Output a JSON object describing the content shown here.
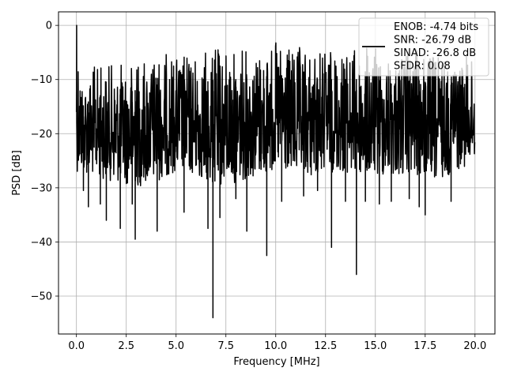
{
  "chart_data": {
    "type": "line",
    "title": "",
    "xlabel": "Frequency [MHz]",
    "ylabel": "PSD [dB]",
    "xlim": [
      -0.9,
      21.0
    ],
    "ylim": [
      -57.0,
      2.5
    ],
    "x_ticks": [
      0.0,
      2.5,
      5.0,
      7.5,
      10.0,
      12.5,
      15.0,
      17.5,
      20.0
    ],
    "x_tick_labels": [
      "0.0",
      "2.5",
      "5.0",
      "7.5",
      "10.0",
      "12.5",
      "15.0",
      "17.5",
      "20.0"
    ],
    "y_ticks": [
      0,
      -10,
      -20,
      -30,
      -40,
      -50
    ],
    "y_tick_labels": [
      "0",
      "−10",
      "−20",
      "−30",
      "−40",
      "−50"
    ],
    "grid": true,
    "legend": {
      "placement": "top-right",
      "lines": [
        "ENOB: -4.74 bits",
        "SNR: -26.79 dB",
        "SINAD: -26.8 dB",
        "SFDR: 0.08"
      ]
    },
    "series": [
      {
        "color": "#000000",
        "x_start": 0.0,
        "x_end": 20.0,
        "description": "dense noisy PSD trace; envelope and notable excursions",
        "upper_envelope_x": [
          0.0,
          0.05,
          0.15,
          0.3,
          1.0,
          2.0,
          3.0,
          4.0,
          5.0,
          6.0,
          7.0,
          8.0,
          9.0,
          10.0,
          11.0,
          12.0,
          13.0,
          14.0,
          15.0,
          16.0,
          17.0,
          18.0,
          19.0,
          20.0
        ],
        "upper_envelope_y": [
          -16,
          0,
          -5,
          -9,
          -7,
          -7,
          -6,
          -5,
          -5,
          -5,
          -4,
          -4,
          -4,
          -3,
          -4,
          -4,
          -4,
          -4,
          -4,
          -5,
          -4,
          -5,
          -5,
          -6
        ],
        "lower_envelope_x": [
          0.0,
          1.0,
          2.0,
          3.0,
          4.0,
          5.0,
          6.0,
          7.0,
          8.0,
          9.0,
          10.0,
          11.0,
          12.0,
          13.0,
          14.0,
          15.0,
          16.0,
          17.0,
          18.0,
          19.0,
          20.0
        ],
        "lower_envelope_y": [
          -27,
          -28,
          -29,
          -30,
          -29,
          -27,
          -28,
          -30,
          -29,
          -28,
          -27,
          -28,
          -28,
          -27,
          -28,
          -28,
          -28,
          -28,
          -29,
          -27,
          -25
        ],
        "deep_notches": [
          {
            "x": 0.35,
            "y": -30.5
          },
          {
            "x": 0.6,
            "y": -33.5
          },
          {
            "x": 1.2,
            "y": -33.0
          },
          {
            "x": 1.5,
            "y": -36.0
          },
          {
            "x": 2.2,
            "y": -37.5
          },
          {
            "x": 2.8,
            "y": -33.0
          },
          {
            "x": 2.95,
            "y": -39.5
          },
          {
            "x": 4.05,
            "y": -38.0
          },
          {
            "x": 5.4,
            "y": -34.5
          },
          {
            "x": 6.6,
            "y": -37.5
          },
          {
            "x": 6.85,
            "y": -54.0
          },
          {
            "x": 7.2,
            "y": -35.5
          },
          {
            "x": 8.0,
            "y": -32.0
          },
          {
            "x": 8.55,
            "y": -38.0
          },
          {
            "x": 9.55,
            "y": -42.5
          },
          {
            "x": 10.3,
            "y": -32.5
          },
          {
            "x": 11.4,
            "y": -31.5
          },
          {
            "x": 12.1,
            "y": -30.5
          },
          {
            "x": 12.8,
            "y": -41.0
          },
          {
            "x": 13.5,
            "y": -32.5
          },
          {
            "x": 14.05,
            "y": -46.0
          },
          {
            "x": 14.5,
            "y": -32.5
          },
          {
            "x": 15.2,
            "y": -33.0
          },
          {
            "x": 15.8,
            "y": -32.5
          },
          {
            "x": 16.7,
            "y": -32.0
          },
          {
            "x": 17.2,
            "y": -33.5
          },
          {
            "x": 17.5,
            "y": -35.0
          },
          {
            "x": 18.8,
            "y": -32.5
          }
        ]
      }
    ]
  }
}
